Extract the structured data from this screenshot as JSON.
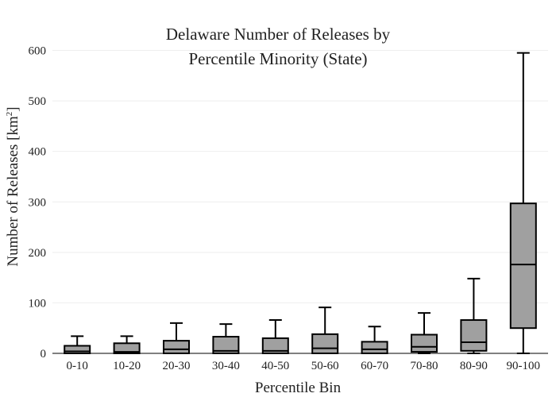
{
  "chart_data": {
    "type": "box",
    "title_lines": [
      "Delaware Number of Releases by",
      "Percentile Minority (State)"
    ],
    "xlabel": "Percentile Bin",
    "ylabel": {
      "text": "Number of Releases  [km",
      "sup": "2",
      "close": "]"
    },
    "ylim": [
      0,
      600
    ],
    "yticks": [
      0,
      100,
      200,
      300,
      400,
      500,
      600
    ],
    "ytick_labels": [
      "0",
      "100",
      "200",
      "300",
      "400",
      "500",
      "600"
    ],
    "grid": true,
    "legend": "none",
    "categories": [
      "0-10",
      "10-20",
      "20-30",
      "30-40",
      "40-50",
      "50-60",
      "60-70",
      "70-80",
      "80-90",
      "90-100"
    ],
    "boxes": [
      {
        "min": 0,
        "q1": 0,
        "median": 4,
        "q3": 15,
        "max": 34
      },
      {
        "min": 0,
        "q1": 0,
        "median": 3,
        "q3": 20,
        "max": 34
      },
      {
        "min": 0,
        "q1": 0,
        "median": 8,
        "q3": 25,
        "max": 60
      },
      {
        "min": 0,
        "q1": 0,
        "median": 5,
        "q3": 33,
        "max": 58
      },
      {
        "min": 0,
        "q1": 0,
        "median": 5,
        "q3": 30,
        "max": 66
      },
      {
        "min": 0,
        "q1": 0,
        "median": 10,
        "q3": 38,
        "max": 91
      },
      {
        "min": 0,
        "q1": 0,
        "median": 8,
        "q3": 23,
        "max": 53
      },
      {
        "min": 0,
        "q1": 3,
        "median": 13,
        "q3": 37,
        "max": 80
      },
      {
        "min": 0,
        "q1": 5,
        "median": 22,
        "q3": 66,
        "max": 148
      },
      {
        "min": 0,
        "q1": 50,
        "median": 176,
        "q3": 297,
        "max": 595
      }
    ],
    "colors": {
      "box_fill": "#a0a0a0",
      "stroke": "#000000",
      "grid": "#eeeeee"
    }
  }
}
